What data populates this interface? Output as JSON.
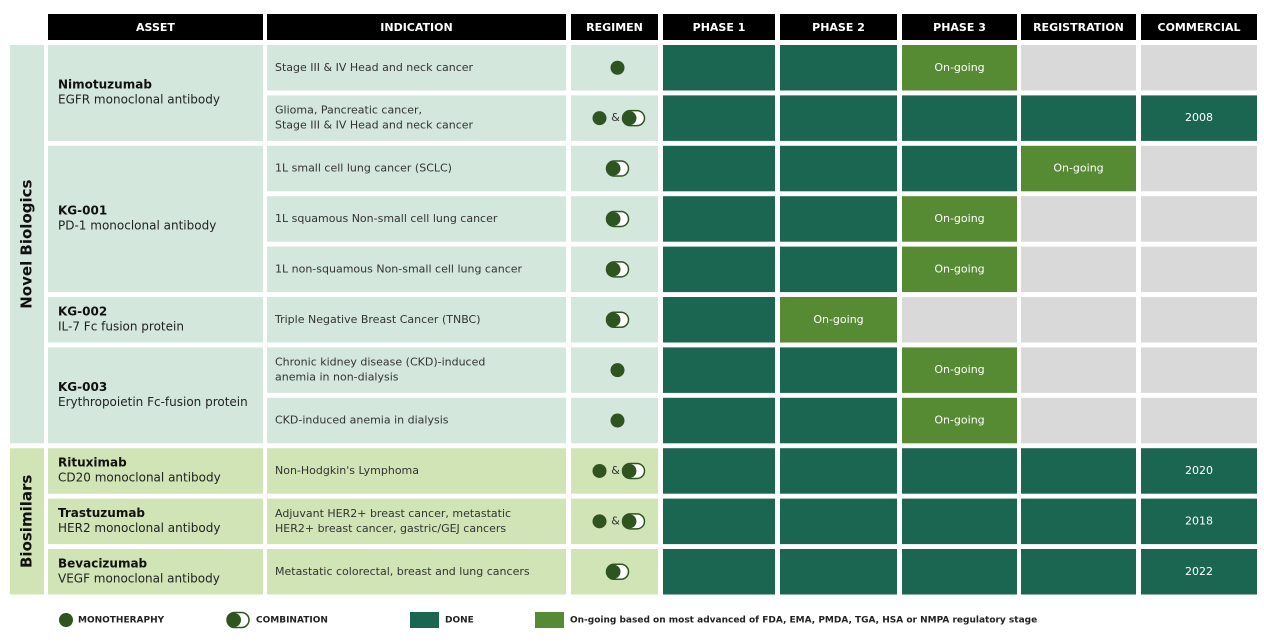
{
  "header": [
    "ASSET",
    "INDICATION",
    "REGIMEN",
    "PHASE 1",
    "PHASE 2",
    "PHASE 3",
    "REGISTRATION",
    "COMMERCIAL"
  ],
  "groups": [
    {
      "label": "Novel Biologics",
      "assets": [
        {
          "name": "Nimotuzumab",
          "description": "EGFR monoclonal antibody",
          "indications": [
            {
              "text": [
                "Stage III & IV Head and neck cancer"
              ],
              "regimen": "monotherapy",
              "stages": [
                {
                  "status": "done"
                },
                {
                  "status": "done"
                },
                {
                  "status": "ongoing",
                  "label": "On-going"
                },
                {
                  "status": "none"
                },
                {
                  "status": "none"
                }
              ]
            },
            {
              "text": [
                "Glioma, Pancreatic cancer,",
                "Stage III & IV Head and neck cancer"
              ],
              "regimen": "both",
              "both_separator": "&",
              "stages": [
                {
                  "status": "done"
                },
                {
                  "status": "done"
                },
                {
                  "status": "done"
                },
                {
                  "status": "done"
                },
                {
                  "status": "done",
                  "label": "2008"
                }
              ]
            }
          ]
        },
        {
          "name": "KG-001",
          "description": "PD-1  monoclonal antibody",
          "indications": [
            {
              "text": [
                "1L small cell lung cancer (SCLC)"
              ],
              "regimen": "combination",
              "stages": [
                {
                  "status": "done"
                },
                {
                  "status": "done"
                },
                {
                  "status": "done"
                },
                {
                  "status": "ongoing",
                  "label": "On-going"
                },
                {
                  "status": "none"
                }
              ]
            },
            {
              "text": [
                "1L squamous Non-small cell lung cancer"
              ],
              "regimen": "combination",
              "stages": [
                {
                  "status": "done"
                },
                {
                  "status": "done"
                },
                {
                  "status": "ongoing",
                  "label": "On-going"
                },
                {
                  "status": "none"
                },
                {
                  "status": "none"
                }
              ]
            },
            {
              "text": [
                "1L non-squamous Non-small cell lung cancer"
              ],
              "regimen": "combination",
              "stages": [
                {
                  "status": "done"
                },
                {
                  "status": "done"
                },
                {
                  "status": "ongoing",
                  "label": "On-going"
                },
                {
                  "status": "none"
                },
                {
                  "status": "none"
                }
              ]
            }
          ]
        },
        {
          "name": "KG-002",
          "description": "IL-7 Fc fusion protein",
          "indications": [
            {
              "text": [
                "Triple Negative Breast Cancer (TNBC)"
              ],
              "regimen": "combination",
              "stages": [
                {
                  "status": "done"
                },
                {
                  "status": "ongoing",
                  "label": "On-going"
                },
                {
                  "status": "none"
                },
                {
                  "status": "none"
                },
                {
                  "status": "none"
                }
              ]
            }
          ]
        },
        {
          "name": "KG-003",
          "description": "Erythropoietin Fc-fusion protein",
          "indications": [
            {
              "text": [
                "Chronic kidney disease (CKD)-induced",
                "anemia in non-dialysis"
              ],
              "regimen": "monotherapy",
              "stages": [
                {
                  "status": "done"
                },
                {
                  "status": "done"
                },
                {
                  "status": "ongoing",
                  "label": "On-going"
                },
                {
                  "status": "none"
                },
                {
                  "status": "none"
                }
              ]
            },
            {
              "text": [
                "CKD-induced anemia in dialysis"
              ],
              "regimen": "monotherapy",
              "stages": [
                {
                  "status": "done"
                },
                {
                  "status": "done"
                },
                {
                  "status": "ongoing",
                  "label": "On-going"
                },
                {
                  "status": "none"
                },
                {
                  "status": "none"
                }
              ]
            }
          ]
        }
      ]
    },
    {
      "label": "Biosimilars",
      "assets": [
        {
          "name": "Rituximab",
          "description": "CD20 monoclonal antibody",
          "indications": [
            {
              "text": [
                "Non-Hodgkin's Lymphoma"
              ],
              "regimen": "both",
              "both_separator": "&",
              "stages": [
                {
                  "status": "done"
                },
                {
                  "status": "done"
                },
                {
                  "status": "done"
                },
                {
                  "status": "done"
                },
                {
                  "status": "done",
                  "label": "2020"
                }
              ]
            }
          ]
        },
        {
          "name": "Trastuzumab",
          "description": "HER2 monoclonal antibody",
          "indications": [
            {
              "text": [
                "Adjuvant HER2+ breast cancer, metastatic",
                "HER2+ breast cancer, gastric/GEJ cancers"
              ],
              "regimen": "both",
              "both_separator": "&",
              "stages": [
                {
                  "status": "done"
                },
                {
                  "status": "done"
                },
                {
                  "status": "done"
                },
                {
                  "status": "done"
                },
                {
                  "status": "done",
                  "label": "2018"
                }
              ]
            }
          ]
        },
        {
          "name": "Bevacizumab",
          "description": "VEGF monoclonal antibody",
          "indications": [
            {
              "text": [
                "Metastatic colorectal, breast and lung cancers"
              ],
              "regimen": "combination",
              "stages": [
                {
                  "status": "done"
                },
                {
                  "status": "done"
                },
                {
                  "status": "done"
                },
                {
                  "status": "done"
                },
                {
                  "status": "done",
                  "label": "2022"
                }
              ]
            }
          ]
        }
      ]
    }
  ],
  "legend": {
    "monotherapy": "MONOTHERAPHY",
    "combination": "COMBINATION",
    "done": "DONE",
    "ongoing": "On-going based on most advanced of FDA, EMA, PMDA, TGA, HSA or NMPA regulatory stage"
  }
}
